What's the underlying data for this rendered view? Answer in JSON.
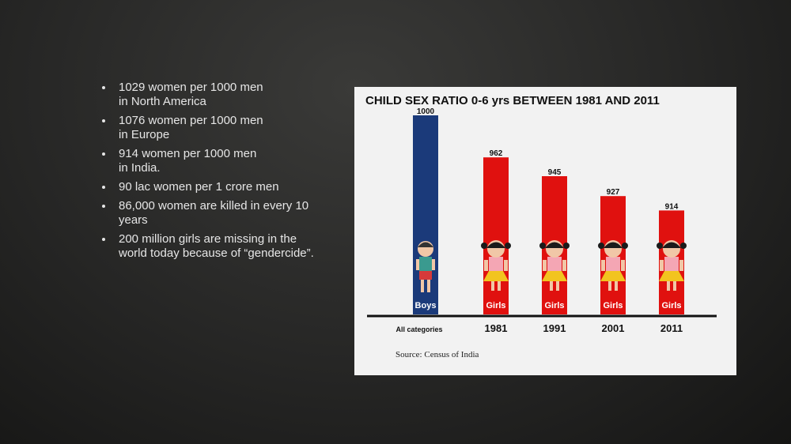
{
  "bullets": [
    {
      "line1": "1029 women per 1000 men",
      "line2": "in North America"
    },
    {
      "line1": "1076 women per 1000 men",
      "line2": "in Europe"
    },
    {
      "line1": "914 women per 1000 men",
      "line2": "in India."
    },
    {
      "line1": "90 lac women per 1 crore men",
      "line2": ""
    },
    {
      "line1": "86,000 women are killed in every 10",
      "line2": "years"
    },
    {
      "line1": "200 million girls are missing in the",
      "line2": "world today because of “gendercide”."
    }
  ],
  "chart_data": {
    "type": "bar",
    "title": "CHILD SEX RATIO 0-6 yrs BETWEEN 1981 AND 2011",
    "categories": [
      "All categories",
      "1981",
      "1991",
      "2001",
      "2011"
    ],
    "values": [
      1000,
      962,
      945,
      927,
      914
    ],
    "bar_tags": [
      "Boys",
      "Girls",
      "Girls",
      "Girls",
      "Girls"
    ],
    "bar_colors": [
      "#1b3a7a",
      "#e0110f",
      "#e0110f",
      "#e0110f",
      "#e0110f"
    ],
    "ylim": [
      820,
      1000
    ],
    "xlabel": "",
    "ylabel": "",
    "grid": false,
    "source": "Source: Census of India"
  }
}
